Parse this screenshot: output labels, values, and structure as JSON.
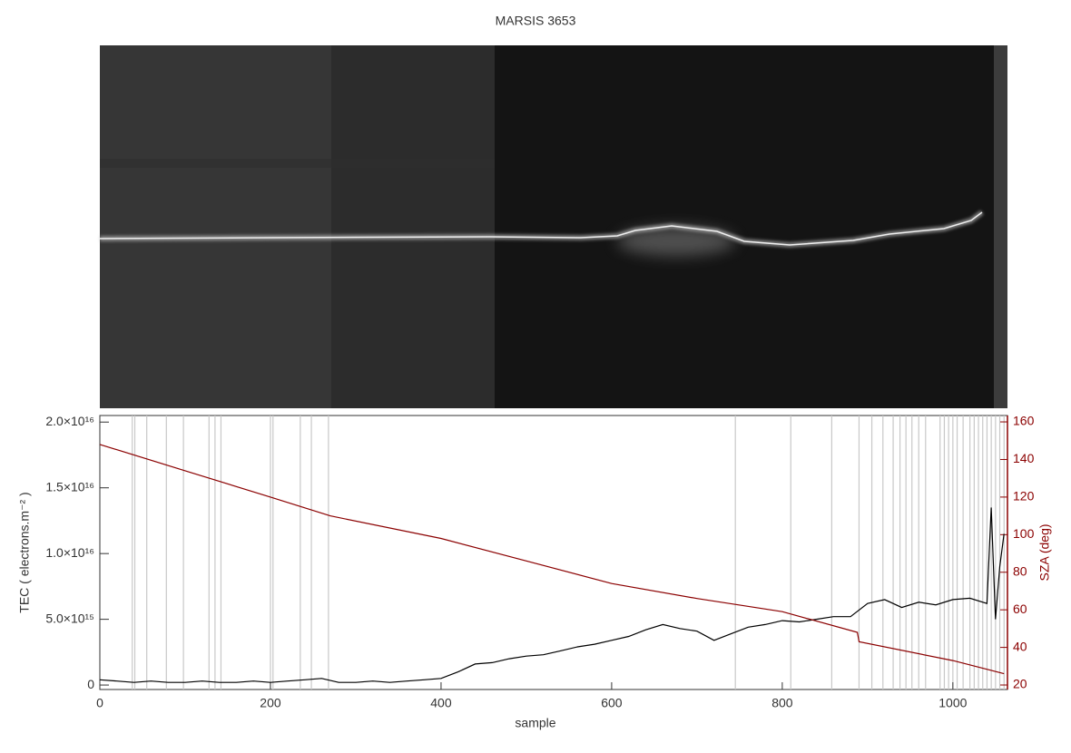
{
  "chart_data": {
    "type": "line",
    "title": "MARSIS 3653",
    "x_label": "sample",
    "y_label": "TEC ( electrons.m⁻² )",
    "y2_label": "SZA (deg)",
    "xlim": [
      0,
      1064
    ],
    "xticks": [
      0,
      200,
      400,
      600,
      800,
      1000
    ],
    "ylim": [
      -340000000000000.0,
      2.05e+16
    ],
    "yticks": [
      0,
      {
        "value": 5000000000000000.0,
        "label": "5.0×10¹⁵"
      },
      {
        "value": 1e+16,
        "label": "1.0×10¹⁶"
      },
      {
        "value": 1.5e+16,
        "label": "1.5×10¹⁶"
      },
      {
        "value": 2e+16,
        "label": "2.0×10¹⁶"
      }
    ],
    "y2lim": [
      17.6,
      163.4
    ],
    "y2ticks": [
      20,
      40,
      60,
      80,
      100,
      120,
      140,
      160
    ],
    "marked_samples": [
      38,
      41,
      55,
      78,
      98,
      128,
      135,
      142,
      200,
      203,
      235,
      248,
      268,
      745,
      810,
      858,
      890,
      905,
      918,
      930,
      938,
      945,
      952,
      960,
      968,
      985,
      990,
      995,
      1000,
      1005,
      1012,
      1020,
      1025,
      1030,
      1035,
      1040,
      1045,
      1050,
      1055,
      1060
    ],
    "series": [
      {
        "color": "#000000",
        "x": [
          0,
          20,
          40,
          60,
          80,
          100,
          120,
          140,
          160,
          180,
          200,
          220,
          240,
          260,
          280,
          300,
          320,
          340,
          360,
          380,
          400,
          420,
          440,
          460,
          480,
          500,
          520,
          540,
          560,
          580,
          600,
          620,
          640,
          660,
          680,
          700,
          720,
          740,
          760,
          780,
          800,
          820,
          840,
          860,
          880,
          900,
          920,
          940,
          960,
          980,
          1000,
          1020,
          1040,
          1045,
          1050,
          1055,
          1060
        ],
        "values": [
          400000000000000.0,
          300000000000000.0,
          200000000000000.0,
          300000000000000.0,
          200000000000000.0,
          200000000000000.0,
          300000000000000.0,
          200000000000000.0,
          200000000000000.0,
          300000000000000.0,
          200000000000000.0,
          300000000000000.0,
          400000000000000.0,
          500000000000000.0,
          200000000000000.0,
          200000000000000.0,
          300000000000000.0,
          200000000000000.0,
          300000000000000.0,
          400000000000000.0,
          500000000000000.0,
          1000000000000000.0,
          1600000000000000.0,
          1700000000000000.0,
          2000000000000000.0,
          2200000000000000.0,
          2300000000000000.0,
          2600000000000000.0,
          2900000000000000.0,
          3100000000000000.0,
          3400000000000000.0,
          3700000000000000.0,
          4200000000000000.0,
          4600000000000000.0,
          4300000000000000.0,
          4100000000000000.0,
          3400000000000000.0,
          3900000000000000.0,
          4400000000000000.0,
          4600000000000000.0,
          4900000000000000.0,
          4800000000000000.0,
          5000000000000000.0,
          5200000000000000.0,
          5200000000000000.0,
          6200000000000000.0,
          6500000000000000.0,
          5900000000000000.0,
          6300000000000000.0,
          6100000000000000.0,
          6500000000000000.0,
          6600000000000000.0,
          6200000000000000.0,
          1.35e+16,
          5000000000000000.0,
          9000000000000000.0,
          1.15e+16
        ]
      },
      {
        "color": "#8b0000",
        "axis": "y2",
        "x": [
          0,
          100,
          200,
          270,
          400,
          500,
          600,
          700,
          800,
          888,
          890,
          1000,
          1060
        ],
        "values": [
          148,
          134,
          120,
          110,
          98,
          86,
          74,
          66,
          59,
          48,
          43,
          33,
          26
        ]
      }
    ]
  }
}
